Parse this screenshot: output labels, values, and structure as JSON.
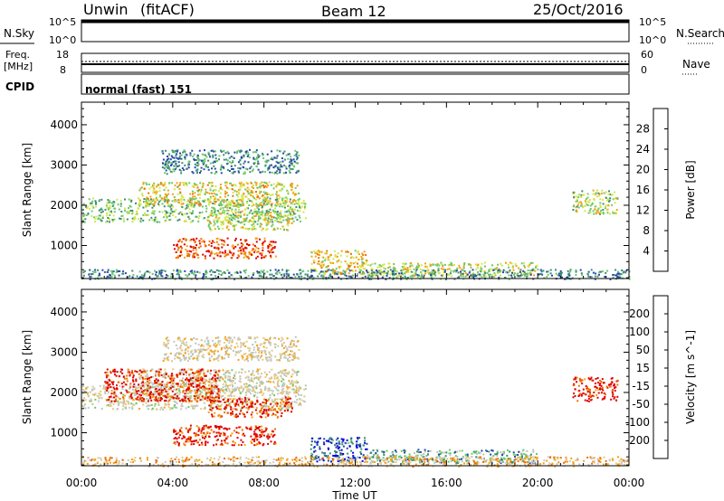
{
  "header": {
    "station": "Unwin",
    "fit": "(fitACF)",
    "beam": "Beam 12",
    "date": "25/Oct/2016"
  },
  "top_panels": {
    "nsky_label": "N.Sky",
    "nsky_tick_top": "10^5",
    "nsky_tick_bottom": "10^0",
    "nsearch_label": "N.Search",
    "nsearch_tick_top": "10^5",
    "nsearch_tick_bottom": "10^0",
    "freq_label_1": "Freq.",
    "freq_label_2": "[MHz]",
    "freq_tick_top": "18",
    "freq_tick_bottom": "8",
    "nave_label": "Nave",
    "nave_tick_top": "60",
    "nave_tick_bottom": "0",
    "cpid_label": "CPID",
    "cpid_value": "normal (fast) 151"
  },
  "chart_data": [
    {
      "type": "heatmap",
      "name": "power",
      "ylabel": "Slant Range [km]",
      "xlabel": "Time UT",
      "ylim": [
        180,
        4560
      ],
      "xlim_hours": [
        0,
        24
      ],
      "x_tick_labels": [
        "00:00",
        "04:00",
        "08:00",
        "12:00",
        "16:00",
        "20:00",
        "00:00"
      ],
      "y_ticks": [
        1000,
        2000,
        3000,
        4000
      ],
      "colorbar_label": "Power [dB]",
      "colorbar_ticks": [
        "28",
        "24",
        "20",
        "16",
        "12",
        "8",
        "4"
      ],
      "colors": [
        "#0000e0",
        "#2846a8",
        "#3c8c78",
        "#6cc86c",
        "#d2e64b",
        "#f5a014",
        "#f06e00",
        "#e00000"
      ],
      "regions": [
        {
          "t0": 0.0,
          "t1": 9.8,
          "r0": 1600,
          "r1": 2200,
          "level": 0.45
        },
        {
          "t0": 2.5,
          "t1": 9.5,
          "r0": 2000,
          "r1": 2600,
          "level": 0.6
        },
        {
          "t0": 4.0,
          "t1": 8.5,
          "r0": 700,
          "r1": 1200,
          "level": 0.85
        },
        {
          "t0": 5.5,
          "t1": 9.2,
          "r0": 1400,
          "r1": 1900,
          "level": 0.55
        },
        {
          "t0": 3.5,
          "t1": 9.5,
          "r0": 2800,
          "r1": 3400,
          "level": 0.3
        },
        {
          "t0": 10.0,
          "t1": 12.5,
          "r0": 300,
          "r1": 900,
          "level": 0.65
        },
        {
          "t0": 12.5,
          "t1": 20.0,
          "r0": 250,
          "r1": 600,
          "level": 0.55
        },
        {
          "t0": 0.0,
          "t1": 24.0,
          "r0": 180,
          "r1": 420,
          "level": 0.3
        },
        {
          "t0": 21.5,
          "t1": 23.5,
          "r0": 1800,
          "r1": 2400,
          "level": 0.5
        }
      ]
    },
    {
      "type": "heatmap",
      "name": "velocity",
      "ylabel": "Slant Range [km]",
      "xlabel": "Time UT",
      "ylim": [
        180,
        4560
      ],
      "xlim_hours": [
        0,
        24
      ],
      "x_tick_labels": [
        "00:00",
        "04:00",
        "08:00",
        "12:00",
        "16:00",
        "20:00",
        "00:00"
      ],
      "y_ticks": [
        1000,
        2000,
        3000,
        4000
      ],
      "colorbar_label": "Velocity [m s^-1]",
      "colorbar_ticks": [
        "200",
        "100",
        "50",
        "15",
        "-15",
        "-50",
        "-100",
        "-200"
      ],
      "colors": [
        "#e00000",
        "#f06e00",
        "#f5a014",
        "#e6c882",
        "#c8c8c8",
        "#b4c8b4",
        "#6cc86c",
        "#3c8c78",
        "#2846a8",
        "#0000e0"
      ],
      "regions": [
        {
          "t0": 0.0,
          "t1": 9.8,
          "r0": 1600,
          "r1": 2200,
          "level": 0.45
        },
        {
          "t0": 2.5,
          "t1": 9.5,
          "r0": 2000,
          "r1": 2600,
          "level": 0.45
        },
        {
          "t0": 1.0,
          "t1": 6.0,
          "r0": 1800,
          "r1": 2600,
          "level": 0.05
        },
        {
          "t0": 4.0,
          "t1": 8.5,
          "r0": 700,
          "r1": 1200,
          "level": 0.05
        },
        {
          "t0": 5.5,
          "t1": 9.2,
          "r0": 1400,
          "r1": 1900,
          "level": 0.1
        },
        {
          "t0": 3.5,
          "t1": 9.5,
          "r0": 2800,
          "r1": 3400,
          "level": 0.4
        },
        {
          "t0": 10.0,
          "t1": 12.5,
          "r0": 300,
          "r1": 900,
          "level": 0.85
        },
        {
          "t0": 12.5,
          "t1": 20.0,
          "r0": 250,
          "r1": 600,
          "level": 0.7
        },
        {
          "t0": 0.0,
          "t1": 24.0,
          "r0": 180,
          "r1": 420,
          "level": 0.3
        },
        {
          "t0": 21.5,
          "t1": 23.5,
          "r0": 1800,
          "r1": 2400,
          "level": 0.05
        }
      ]
    }
  ]
}
